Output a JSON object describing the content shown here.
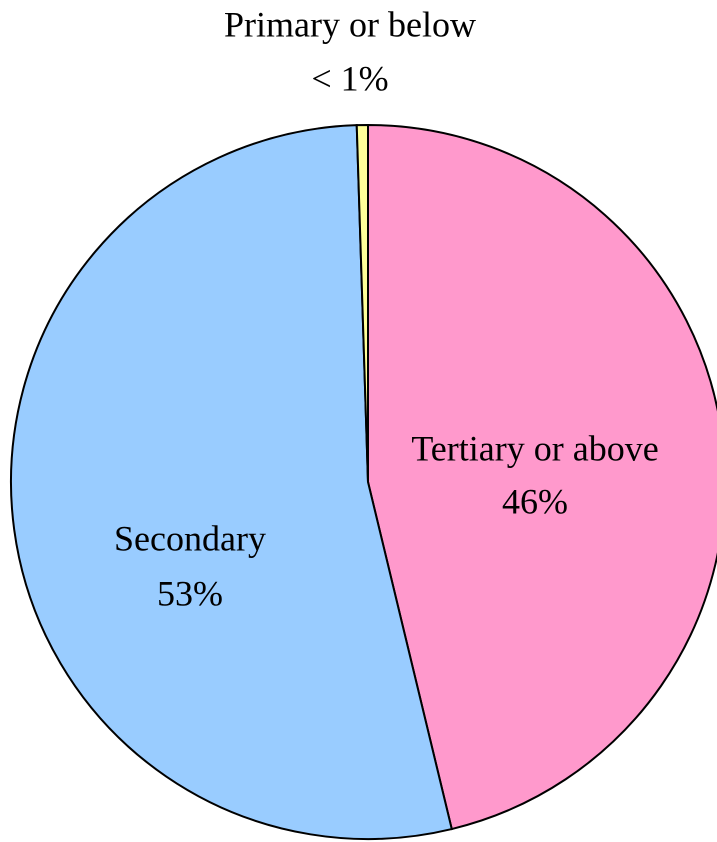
{
  "chart_data": {
    "type": "pie",
    "categories": [
      "Tertiary or above",
      "Secondary",
      "Primary or below"
    ],
    "values": [
      46,
      53,
      0.5
    ],
    "value_labels": [
      "46%",
      "53%",
      "< 1%"
    ],
    "colors": [
      "#ff99cc",
      "#99ccff",
      "#ffff99"
    ]
  }
}
